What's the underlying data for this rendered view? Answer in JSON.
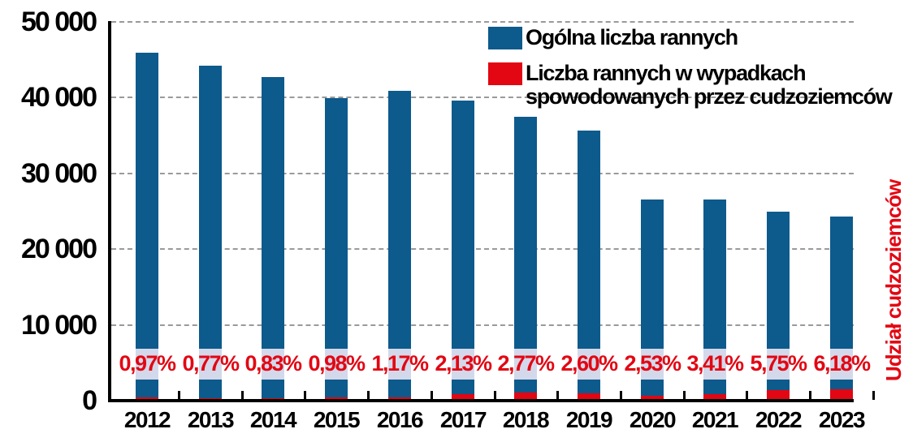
{
  "chart_data": {
    "type": "bar",
    "title": "",
    "xlabel": "",
    "ylabel": "",
    "secondary_label": "Udział cudzoziemców",
    "ylim": [
      0,
      50000
    ],
    "yticks": [
      "0",
      "10 000",
      "20 000",
      "30 000",
      "40 000",
      "50 000"
    ],
    "grid": true,
    "legend_position": "top-right",
    "categories": [
      "2012",
      "2013",
      "2014",
      "2015",
      "2016",
      "2017",
      "2018",
      "2019",
      "2020",
      "2021",
      "2022",
      "2023"
    ],
    "series": [
      {
        "name": "Ogólna liczba rannych",
        "color": "#0d5a8c",
        "values": [
          45900,
          44200,
          42700,
          39900,
          40900,
          39600,
          37500,
          35600,
          26600,
          26500,
          24900,
          24300
        ]
      },
      {
        "name": "Liczba rannych w wypadkach spowodowanych przez cudzoziemców",
        "color": "#e30613",
        "values": [
          445,
          340,
          354,
          391,
          479,
          843,
          1039,
          926,
          673,
          904,
          1432,
          1502
        ]
      }
    ],
    "annotations": [
      "0,97%",
      "0,77%",
      "0,83%",
      "0,98%",
      "1,17%",
      "2,13%",
      "2,77%",
      "2,60%",
      "2,53%",
      "3,41%",
      "5,75%",
      "6,18%"
    ]
  },
  "legend": {
    "items": [
      {
        "label": "Ogólna liczba rannych",
        "color": "#0d5a8c"
      },
      {
        "label_line1": "Liczba rannych w wypadkach",
        "label_line2": "spowodowanych przez cudzoziemców",
        "color": "#e30613"
      }
    ]
  },
  "axis": {
    "y_ticks": [
      "50 000",
      "40 000",
      "30 000",
      "20 000",
      "10 000",
      "0"
    ],
    "side_label": "Udział cudzoziemców"
  }
}
